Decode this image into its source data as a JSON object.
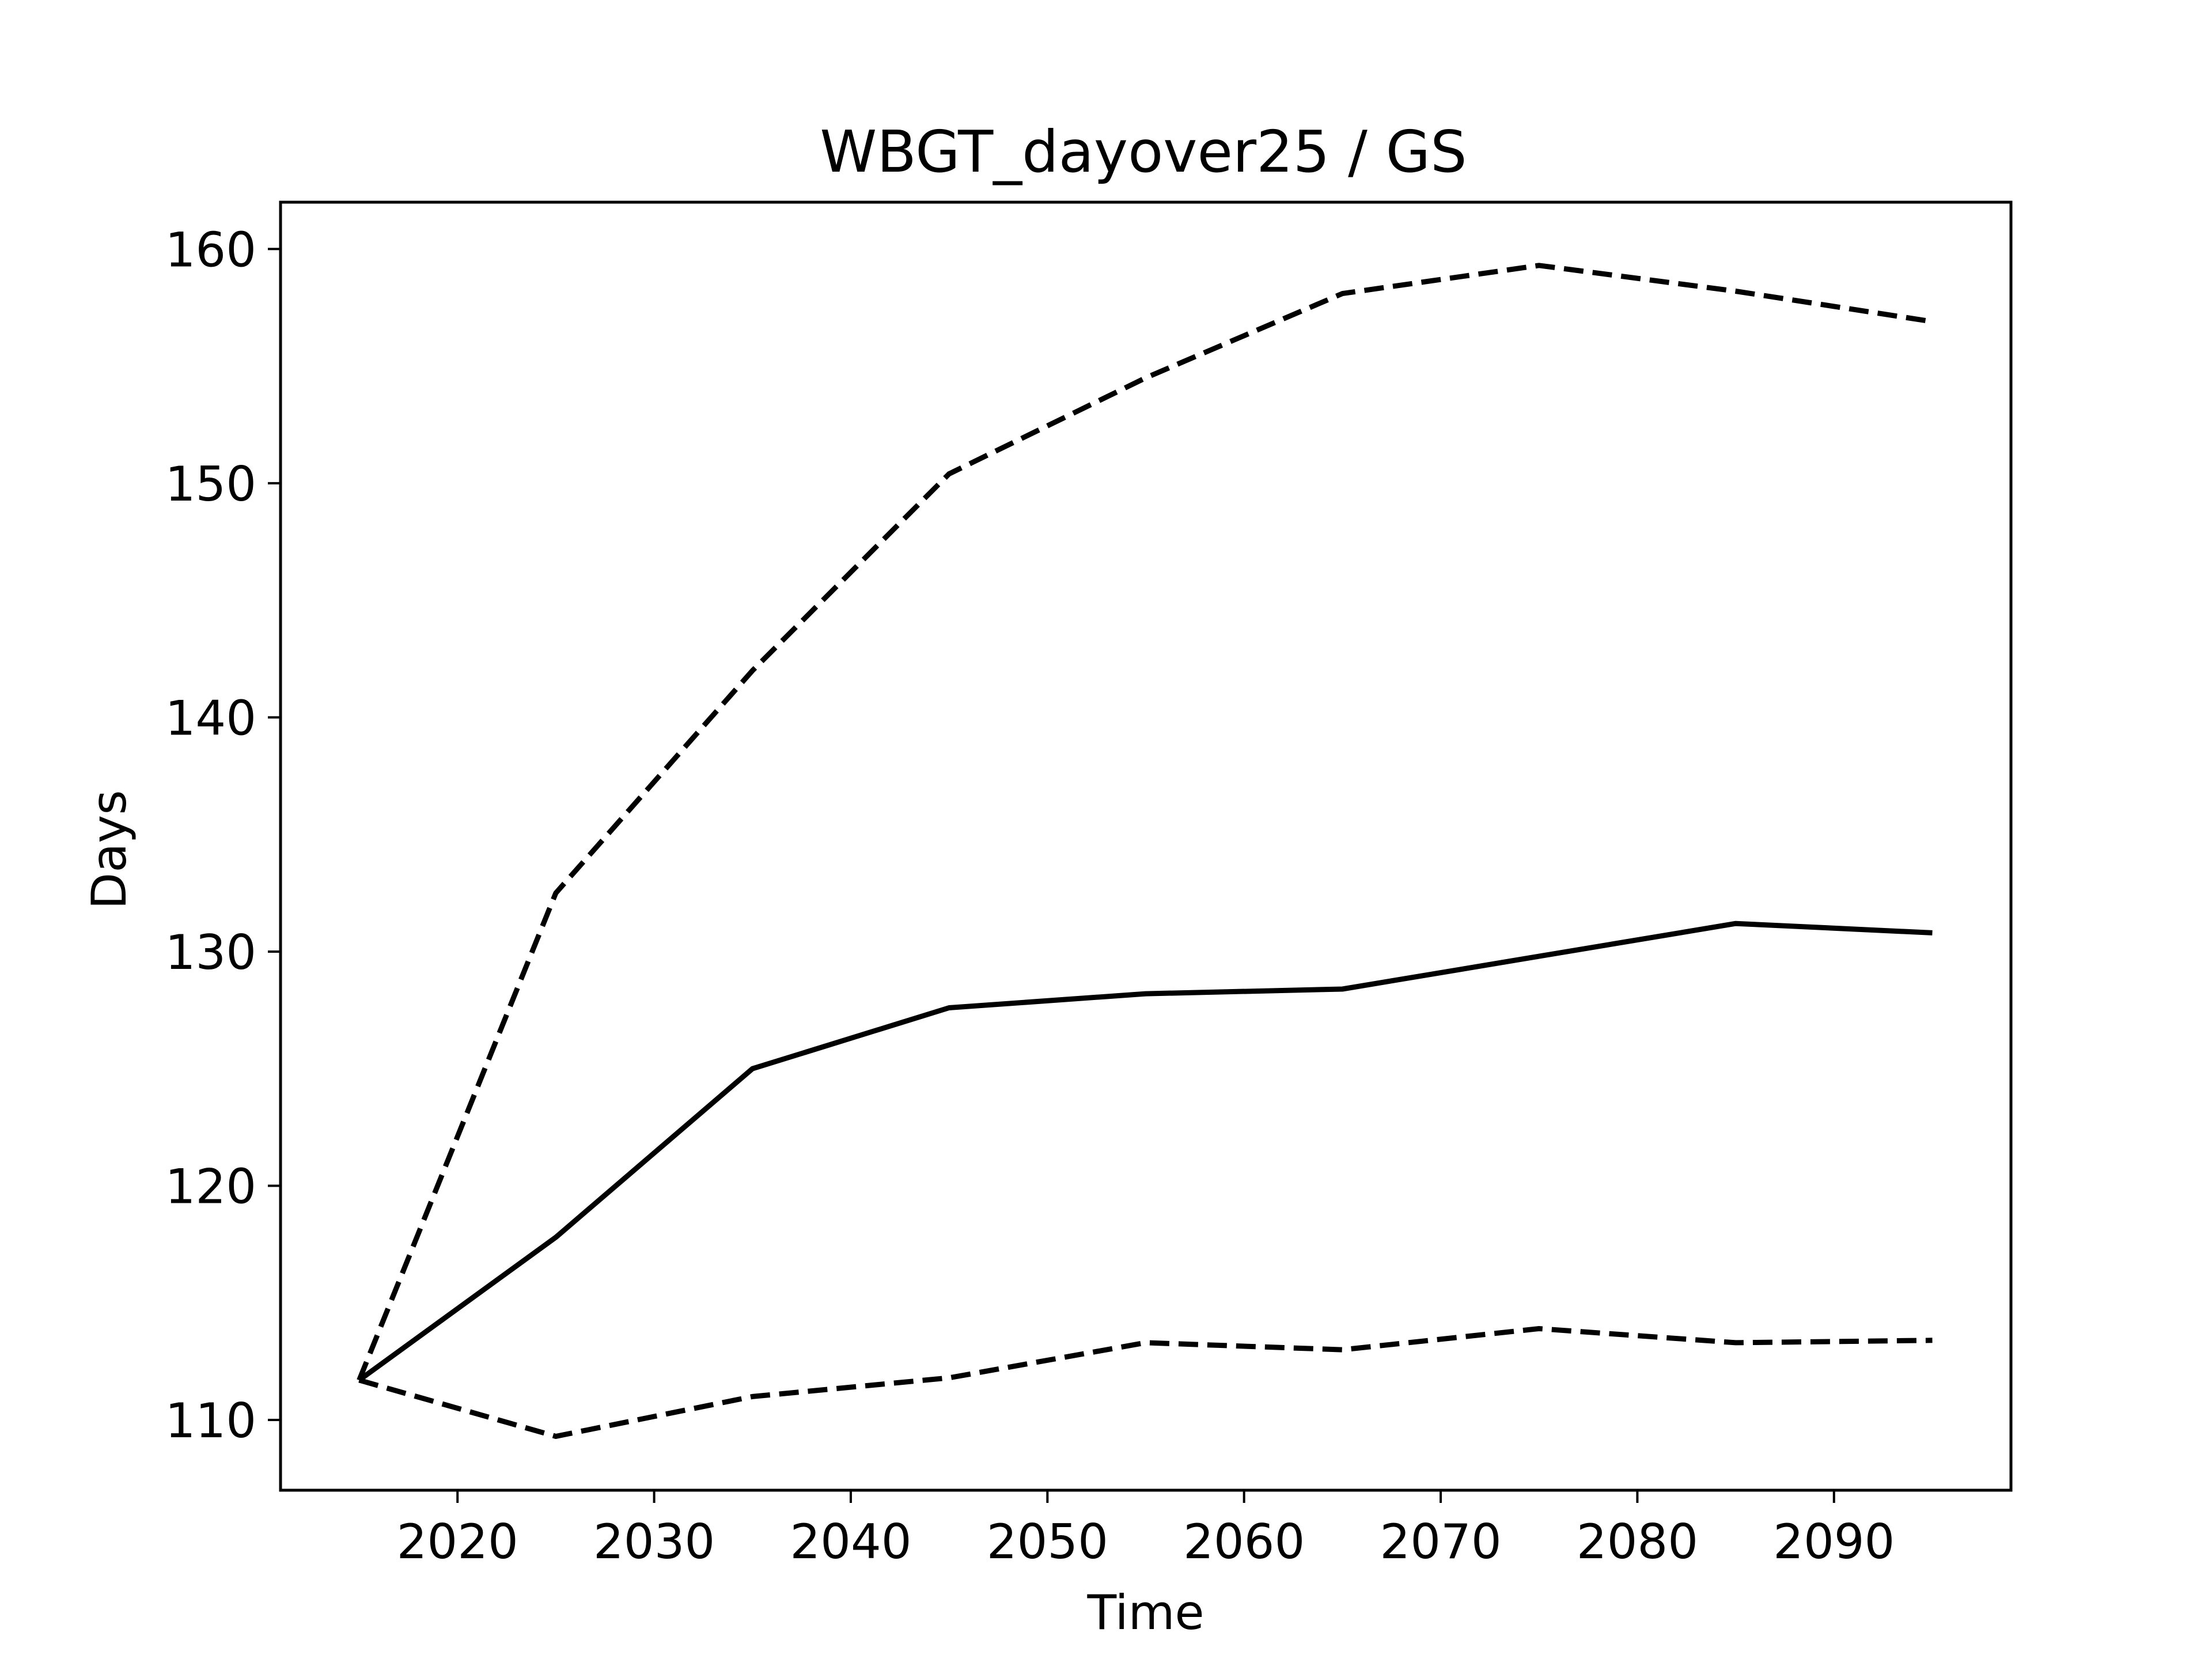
{
  "chart_data": {
    "type": "line",
    "title": "WBGT_dayover25 / GS",
    "xlabel": "Time",
    "ylabel": "Days",
    "x": [
      2015,
      2025,
      2035,
      2045,
      2055,
      2065,
      2075,
      2085,
      2095
    ],
    "series": [
      {
        "style": "solid",
        "values": [
          111.7,
          117.8,
          125.0,
          127.6,
          128.2,
          128.4,
          129.8,
          131.2,
          130.8
        ]
      },
      {
        "style": "dashed",
        "values": [
          111.7,
          132.5,
          142.0,
          150.4,
          154.5,
          158.1,
          159.3,
          158.2,
          156.9
        ]
      },
      {
        "style": "dashed",
        "values": [
          111.7,
          109.3,
          111.0,
          111.8,
          113.3,
          113.0,
          113.9,
          113.3,
          113.4
        ]
      }
    ],
    "xticks": [
      2020,
      2030,
      2040,
      2050,
      2060,
      2070,
      2080,
      2090
    ],
    "yticks": [
      110,
      120,
      130,
      140,
      150,
      160
    ],
    "xlim": [
      2011,
      2099
    ],
    "ylim": [
      107,
      162
    ],
    "grid": false,
    "legend": "none",
    "line_color": "#000000"
  }
}
